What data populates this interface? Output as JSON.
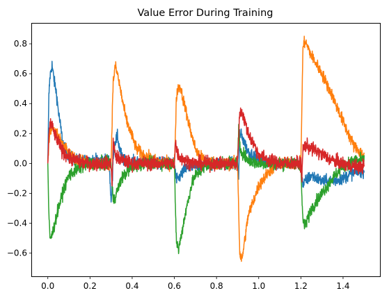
{
  "chart_data": {
    "type": "line",
    "title": "Value Error During Training",
    "xlabel": "",
    "ylabel": "",
    "xlim": [
      -0.075,
      1.575
    ],
    "ylim": [
      -0.755,
      0.935
    ],
    "xticks": [
      "0.0",
      "0.2",
      "0.4",
      "0.6",
      "0.8",
      "1.0",
      "1.2",
      "1.4"
    ],
    "xtick_values": [
      0.0,
      0.2,
      0.4,
      0.6,
      0.8,
      1.0,
      1.2,
      1.4
    ],
    "yticks": [
      "−0.6",
      "−0.4",
      "−0.2",
      "0.0",
      "0.2",
      "0.4",
      "0.6",
      "0.8"
    ],
    "ytick_values": [
      -0.6,
      -0.4,
      -0.2,
      0.0,
      0.2,
      0.4,
      0.6,
      0.8
    ],
    "grid": false,
    "legend": "none",
    "series": [
      {
        "color": "#1f77b4",
        "x": [
          0.0,
          0.005,
          0.01,
          0.015,
          0.02,
          0.03,
          0.04,
          0.05,
          0.06,
          0.07,
          0.08,
          0.1,
          0.12,
          0.15,
          0.2,
          0.25,
          0.29,
          0.3,
          0.305,
          0.31,
          0.315,
          0.32,
          0.33,
          0.34,
          0.35,
          0.36,
          0.38,
          0.4,
          0.45,
          0.5,
          0.55,
          0.6,
          0.61,
          0.62,
          0.63,
          0.65,
          0.7,
          0.75,
          0.8,
          0.85,
          0.9,
          0.905,
          0.91,
          0.92,
          0.95,
          1.0,
          1.05,
          1.1,
          1.15,
          1.2,
          1.21,
          1.22,
          1.25,
          1.3,
          1.35,
          1.4,
          1.45,
          1.5
        ],
        "y": [
          0.0,
          0.45,
          0.58,
          0.62,
          0.66,
          0.55,
          0.48,
          0.35,
          0.25,
          0.15,
          0.1,
          0.05,
          0.03,
          0.02,
          0.02,
          0.02,
          0.02,
          -0.25,
          -0.18,
          0.05,
          0.12,
          0.15,
          0.18,
          0.1,
          0.05,
          0.02,
          0.01,
          0.01,
          0.01,
          0.0,
          0.0,
          0.0,
          -0.12,
          -0.1,
          -0.08,
          -0.04,
          -0.02,
          0.0,
          0.0,
          0.0,
          0.0,
          -0.1,
          0.2,
          0.18,
          0.08,
          0.02,
          0.0,
          0.0,
          0.0,
          0.0,
          -0.15,
          -0.12,
          -0.08,
          -0.12,
          -0.12,
          -0.1,
          -0.06,
          -0.05
        ],
        "noise": 0.04
      },
      {
        "color": "#ff7f0e",
        "x": [
          0.0,
          0.005,
          0.01,
          0.02,
          0.03,
          0.05,
          0.08,
          0.1,
          0.15,
          0.2,
          0.25,
          0.3,
          0.305,
          0.31,
          0.32,
          0.33,
          0.35,
          0.37,
          0.4,
          0.42,
          0.45,
          0.5,
          0.55,
          0.6,
          0.605,
          0.61,
          0.62,
          0.63,
          0.65,
          0.68,
          0.7,
          0.72,
          0.75,
          0.8,
          0.85,
          0.9,
          0.905,
          0.91,
          0.92,
          0.93,
          0.95,
          1.0,
          1.05,
          1.1,
          1.15,
          1.2,
          1.205,
          1.21,
          1.22,
          1.25,
          1.3,
          1.35,
          1.4,
          1.45,
          1.5
        ],
        "y": [
          0.0,
          0.15,
          0.2,
          0.25,
          0.22,
          0.18,
          0.12,
          0.06,
          0.02,
          0.0,
          0.0,
          0.0,
          0.3,
          0.55,
          0.65,
          0.6,
          0.45,
          0.3,
          0.18,
          0.1,
          0.06,
          0.02,
          0.0,
          0.0,
          0.2,
          0.45,
          0.52,
          0.5,
          0.38,
          0.2,
          0.1,
          0.05,
          0.02,
          0.0,
          0.0,
          0.0,
          -0.3,
          -0.6,
          -0.65,
          -0.55,
          -0.35,
          -0.15,
          -0.05,
          0.0,
          0.0,
          0.0,
          0.4,
          0.78,
          0.82,
          0.72,
          0.6,
          0.45,
          0.28,
          0.12,
          0.05
        ],
        "noise": 0.04
      },
      {
        "color": "#2ca02c",
        "x": [
          0.0,
          0.005,
          0.01,
          0.02,
          0.03,
          0.05,
          0.08,
          0.1,
          0.15,
          0.2,
          0.25,
          0.3,
          0.305,
          0.31,
          0.32,
          0.33,
          0.35,
          0.38,
          0.4,
          0.45,
          0.5,
          0.55,
          0.6,
          0.605,
          0.61,
          0.62,
          0.63,
          0.65,
          0.68,
          0.7,
          0.75,
          0.8,
          0.85,
          0.9,
          0.905,
          0.91,
          0.92,
          0.95,
          1.0,
          1.05,
          1.1,
          1.15,
          1.2,
          1.205,
          1.21,
          1.22,
          1.25,
          1.3,
          1.35,
          1.4,
          1.45,
          1.5
        ],
        "y": [
          0.0,
          -0.35,
          -0.5,
          -0.48,
          -0.42,
          -0.3,
          -0.15,
          -0.08,
          -0.03,
          0.0,
          0.0,
          0.0,
          -0.15,
          -0.25,
          -0.22,
          -0.18,
          -0.1,
          -0.05,
          -0.02,
          0.0,
          0.0,
          0.0,
          0.0,
          -0.3,
          -0.52,
          -0.58,
          -0.5,
          -0.35,
          -0.15,
          -0.08,
          -0.02,
          0.0,
          0.0,
          0.0,
          0.25,
          0.1,
          0.08,
          0.02,
          0.0,
          0.0,
          0.0,
          0.0,
          0.0,
          -0.25,
          -0.38,
          -0.42,
          -0.3,
          -0.2,
          -0.1,
          -0.02,
          0.02,
          0.02
        ],
        "noise": 0.04
      },
      {
        "color": "#d62728",
        "x": [
          0.0,
          0.005,
          0.01,
          0.02,
          0.03,
          0.05,
          0.07,
          0.1,
          0.15,
          0.2,
          0.25,
          0.3,
          0.305,
          0.31,
          0.32,
          0.35,
          0.4,
          0.5,
          0.6,
          0.605,
          0.61,
          0.62,
          0.65,
          0.7,
          0.8,
          0.9,
          0.905,
          0.91,
          0.92,
          0.93,
          0.95,
          0.98,
          1.0,
          1.05,
          1.1,
          1.15,
          1.2,
          1.205,
          1.21,
          1.22,
          1.25,
          1.3,
          1.35,
          1.4,
          1.45,
          1.5
        ],
        "y": [
          0.0,
          0.2,
          0.27,
          0.25,
          0.2,
          0.14,
          0.08,
          0.04,
          0.01,
          0.0,
          0.0,
          0.0,
          -0.15,
          0.15,
          0.05,
          0.02,
          0.0,
          0.0,
          0.0,
          0.15,
          0.1,
          0.05,
          0.02,
          0.0,
          0.0,
          0.0,
          0.2,
          0.33,
          0.35,
          0.3,
          0.2,
          0.12,
          0.06,
          0.02,
          0.0,
          0.0,
          0.0,
          -0.1,
          0.1,
          0.12,
          0.1,
          0.06,
          0.02,
          0.0,
          -0.02,
          -0.02
        ],
        "noise": 0.045
      }
    ]
  }
}
